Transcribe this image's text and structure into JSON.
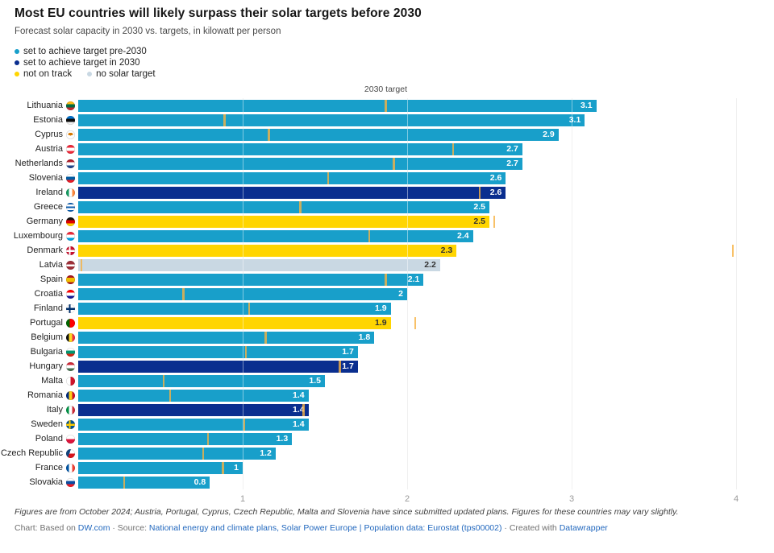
{
  "header": {
    "title": "Most EU countries will likely surpass their solar targets before 2030",
    "subtitle": "Forecast solar capacity in 2030 vs. targets, in kilowatt per person"
  },
  "colors": {
    "pre2030": "#189fca",
    "in2030": "#0a2e8f",
    "not_on_track": "#ffd500",
    "no_target": "#c9d8e3",
    "target_tick": "rgba(246,178,66,0.8)",
    "value_label_light": "#ffffff",
    "value_label_dark": "#333333",
    "link": "#2268be"
  },
  "legend": {
    "items": [
      {
        "label": "set to achieve target pre-2030",
        "status": "pre2030"
      },
      {
        "label": "set to achieve target in 2030",
        "status": "in2030"
      },
      {
        "label": "not on track",
        "status": "not_on_track"
      },
      {
        "label": "no solar target",
        "status": "no_target"
      }
    ]
  },
  "chart_data": {
    "type": "bar",
    "title": "Most EU countries will likely surpass their solar targets before 2030",
    "subtitle": "Forecast solar capacity in 2030 vs. targets, in kilowatt per person",
    "unit": "kilowatt per person",
    "xlim": [
      0,
      4
    ],
    "x_ticks": [
      "1",
      "2",
      "3",
      "4"
    ],
    "grid": true,
    "top_axis_label": "2030 target",
    "legend_position": "top-left",
    "status_meaning": {
      "pre2030": "set to achieve target pre-2030",
      "in2030": "set to achieve target in 2030",
      "not_on_track": "not on track",
      "no_target": "no solar target"
    },
    "rows": [
      {
        "country": "Lithuania",
        "flag": "lithuania",
        "value": 3.15,
        "label": "3.1",
        "status": "pre2030",
        "target": 1.87
      },
      {
        "country": "Estonia",
        "flag": "estonia",
        "value": 3.08,
        "label": "3.1",
        "status": "pre2030",
        "target": 0.89
      },
      {
        "country": "Cyprus",
        "flag": "cyprus",
        "value": 2.92,
        "label": "2.9",
        "status": "pre2030",
        "target": 1.16
      },
      {
        "country": "Austria",
        "flag": "austria",
        "value": 2.7,
        "label": "2.7",
        "status": "pre2030",
        "target": 2.28
      },
      {
        "country": "Netherlands",
        "flag": "netherlands",
        "value": 2.7,
        "label": "2.7",
        "status": "pre2030",
        "target": 1.92
      },
      {
        "country": "Slovenia",
        "flag": "slovenia",
        "value": 2.6,
        "label": "2.6",
        "status": "pre2030",
        "target": 1.52
      },
      {
        "country": "Ireland",
        "flag": "ireland",
        "value": 2.6,
        "label": "2.6",
        "status": "in2030",
        "target": 2.44
      },
      {
        "country": "Greece",
        "flag": "greece",
        "value": 2.5,
        "label": "2.5",
        "status": "pre2030",
        "target": 1.35
      },
      {
        "country": "Germany",
        "flag": "germany",
        "value": 2.5,
        "label": "2.5",
        "status": "not_on_track",
        "target": 2.53
      },
      {
        "country": "Luxembourg",
        "flag": "luxembourg",
        "value": 2.4,
        "label": "2.4",
        "status": "pre2030",
        "target": 1.77
      },
      {
        "country": "Denmark",
        "flag": "denmark",
        "value": 2.3,
        "label": "2.3",
        "status": "not_on_track",
        "target": 3.98
      },
      {
        "country": "Latvia",
        "flag": "latvia",
        "value": 2.2,
        "label": "2.2",
        "status": "no_target",
        "target": 0.02
      },
      {
        "country": "Spain",
        "flag": "spain",
        "value": 2.1,
        "label": "2.1",
        "status": "pre2030",
        "target": 1.87
      },
      {
        "country": "Croatia",
        "flag": "croatia",
        "value": 2.0,
        "label": "2",
        "status": "pre2030",
        "target": 0.64
      },
      {
        "country": "Finland",
        "flag": "finland",
        "value": 1.9,
        "label": "1.9",
        "status": "pre2030",
        "target": 1.04
      },
      {
        "country": "Portugal",
        "flag": "portugal",
        "value": 1.9,
        "label": "1.9",
        "status": "not_on_track",
        "target": 2.05
      },
      {
        "country": "Belgium",
        "flag": "belgium",
        "value": 1.8,
        "label": "1.8",
        "status": "pre2030",
        "target": 1.14
      },
      {
        "country": "Bulgaria",
        "flag": "bulgaria",
        "value": 1.7,
        "label": "1.7",
        "status": "pre2030",
        "target": 1.02
      },
      {
        "country": "Hungary",
        "flag": "hungary",
        "value": 1.7,
        "label": "1.7",
        "status": "in2030",
        "target": 1.59
      },
      {
        "country": "Malta",
        "flag": "malta",
        "value": 1.5,
        "label": "1.5",
        "status": "pre2030",
        "target": 0.52
      },
      {
        "country": "Romania",
        "flag": "romania",
        "value": 1.4,
        "label": "1.4",
        "status": "pre2030",
        "target": 0.56
      },
      {
        "country": "Italy",
        "flag": "italy",
        "value": 1.4,
        "label": "1.4",
        "status": "in2030",
        "target": 1.37
      },
      {
        "country": "Sweden",
        "flag": "sweden",
        "value": 1.4,
        "label": "1.4",
        "status": "pre2030",
        "target": 1.01
      },
      {
        "country": "Poland",
        "flag": "poland",
        "value": 1.3,
        "label": "1.3",
        "status": "pre2030",
        "target": 0.79
      },
      {
        "country": "Czech Republic",
        "flag": "czech-republic",
        "value": 1.2,
        "label": "1.2",
        "status": "pre2030",
        "target": 0.76
      },
      {
        "country": "France",
        "flag": "france",
        "value": 1.0,
        "label": "1",
        "status": "pre2030",
        "target": 0.88
      },
      {
        "country": "Slovakia",
        "flag": "slovakia",
        "value": 0.8,
        "label": "0.8",
        "status": "pre2030",
        "target": 0.28
      }
    ]
  },
  "footer": {
    "footnote": "Figures are from October 2024; Austria, Portugal, Cyprus, Czech Republic, Malta and Slovenia have since submitted updated plans. Figures for these countries may vary slightly.",
    "credits": [
      {
        "text": "Chart: Based on ",
        "link": false
      },
      {
        "text": "DW.com",
        "link": true
      },
      {
        "text": " · Source: ",
        "link": false
      },
      {
        "text": "National energy and climate plans, Solar Power Europe | Population data: Eurostat (tps00002)",
        "link": true
      },
      {
        "text": " · Created with ",
        "link": false
      },
      {
        "text": "Datawrapper",
        "link": true
      }
    ]
  }
}
